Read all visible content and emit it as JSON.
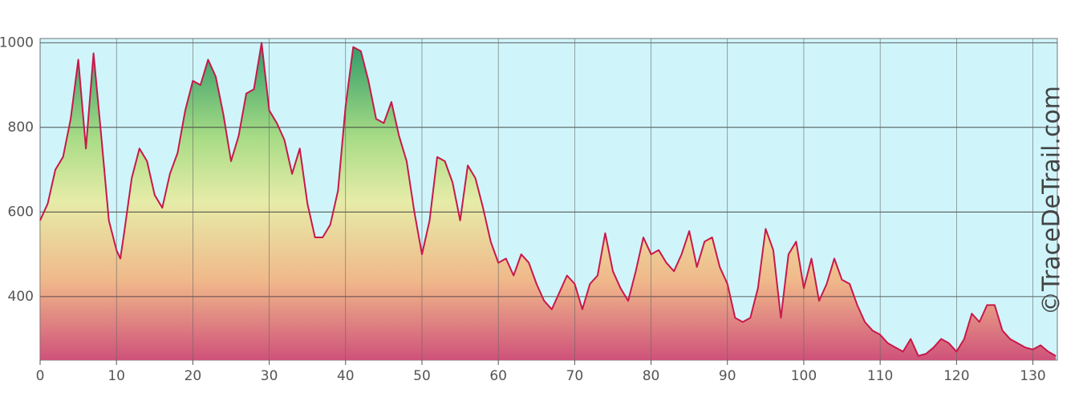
{
  "chart_data": {
    "type": "area",
    "watermark": "©TraceDeTrail.com",
    "x": [
      0,
      1,
      2,
      3,
      4,
      5,
      6,
      7,
      8,
      9,
      10,
      10.5,
      11,
      12,
      13,
      14,
      15,
      16,
      17,
      18,
      19,
      20,
      21,
      22,
      23,
      24,
      25,
      26,
      27,
      28,
      29,
      30,
      31,
      32,
      33,
      34,
      35,
      36,
      37,
      38,
      39,
      40,
      41,
      42,
      43,
      44,
      45,
      46,
      47,
      48,
      49,
      50,
      51,
      52,
      53,
      54,
      55,
      56,
      57,
      58,
      59,
      60,
      61,
      62,
      63,
      64,
      65,
      66,
      67,
      68,
      69,
      70,
      71,
      72,
      73,
      74,
      75,
      76,
      77,
      78,
      79,
      80,
      81,
      82,
      83,
      84,
      85,
      86,
      87,
      88,
      89,
      90,
      91,
      92,
      93,
      94,
      95,
      96,
      97,
      98,
      99,
      100,
      101,
      102,
      103,
      104,
      105,
      106,
      107,
      108,
      109,
      110,
      111,
      112,
      113,
      114,
      115,
      116,
      117,
      118,
      119,
      120,
      121,
      122,
      123,
      124,
      125,
      126,
      127,
      128,
      129,
      130,
      131,
      132,
      133
    ],
    "values": [
      580,
      620,
      700,
      730,
      820,
      960,
      750,
      975,
      780,
      580,
      510,
      490,
      550,
      680,
      750,
      720,
      640,
      610,
      690,
      740,
      840,
      910,
      900,
      960,
      920,
      830,
      720,
      780,
      880,
      890,
      1000,
      840,
      810,
      770,
      690,
      750,
      620,
      540,
      540,
      570,
      650,
      850,
      990,
      980,
      910,
      820,
      810,
      860,
      780,
      720,
      600,
      500,
      580,
      730,
      720,
      670,
      580,
      710,
      680,
      610,
      530,
      480,
      490,
      450,
      500,
      480,
      430,
      390,
      370,
      410,
      450,
      430,
      370,
      430,
      450,
      550,
      460,
      420,
      390,
      460,
      540,
      500,
      510,
      480,
      460,
      500,
      555,
      470,
      530,
      540,
      470,
      430,
      350,
      340,
      350,
      420,
      560,
      510,
      350,
      500,
      530,
      420,
      490,
      390,
      430,
      490,
      440,
      430,
      380,
      340,
      320,
      310,
      290,
      280,
      270,
      300,
      260,
      265,
      280,
      300,
      290,
      270,
      300,
      360,
      340,
      380,
      380,
      320,
      300,
      290,
      280,
      275,
      285,
      270,
      260
    ],
    "color": "#c8184a",
    "xlim": [
      0,
      133.2
    ],
    "ylim": [
      250,
      1010
    ],
    "xticks": [
      0,
      10,
      20,
      30,
      40,
      50,
      60,
      70,
      80,
      90,
      100,
      110,
      120,
      130
    ],
    "yticks": [
      400,
      600,
      800,
      1000
    ],
    "grid": true
  }
}
